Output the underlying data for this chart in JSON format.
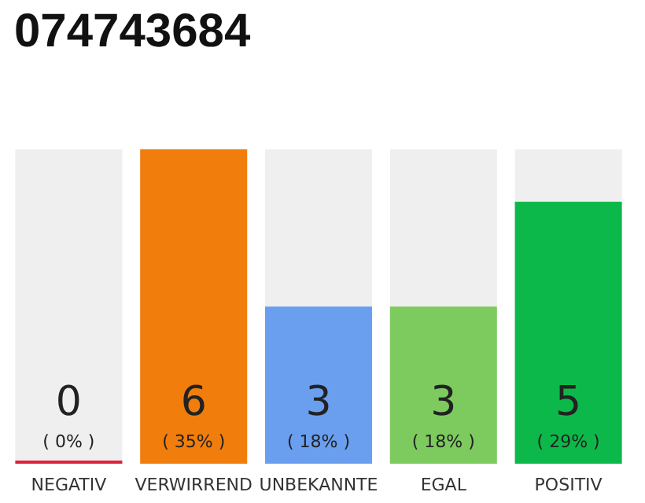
{
  "chart_data": {
    "type": "bar",
    "title": "074743684",
    "categories": [
      "NEGATIV",
      "VERWIRREND",
      "UNBEKANNTE",
      "EGAL",
      "POSITIV"
    ],
    "values": [
      0,
      6,
      3,
      3,
      5
    ],
    "colors": [
      "#e0203c",
      "#f07d0c",
      "#6a9ff0",
      "#7dcb5f",
      "#0db84a"
    ],
    "value_labels": [
      "0\n( 0% )",
      "6\n( 35% )",
      "3\n( 18% )",
      "3\n( 18% )",
      "5\n( 29% )"
    ]
  }
}
